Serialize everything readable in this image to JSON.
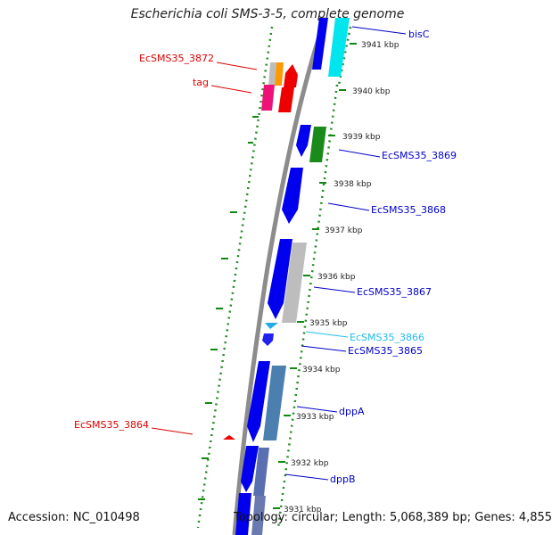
{
  "header": {
    "title": "Escherichia coli SMS-3-5, complete genome"
  },
  "footer": {
    "accession": "Accession: NC_010498",
    "summary": "Topology: circular; Length: 5,068,389 bp; Genes: 4,855"
  },
  "tick_labels": [
    "3941 kbp",
    "3940 kbp",
    "3939 kbp",
    "3938 kbp",
    "3937 kbp",
    "3936 kbp",
    "3935 kbp",
    "3934 kbp",
    "3933 kbp",
    "3932 kbp",
    "3931 kbp"
  ],
  "gene_labels": [
    {
      "text": "bisC",
      "color": "#0000cc"
    },
    {
      "text": "EcSMS35_3872",
      "color": "#dd0000"
    },
    {
      "text": "tag",
      "color": "#dd0000"
    },
    {
      "text": "EcSMS35_3869",
      "color": "#0000cc"
    },
    {
      "text": "EcSMS35_3868",
      "color": "#0000cc"
    },
    {
      "text": "EcSMS35_3867",
      "color": "#0000cc"
    },
    {
      "text": "EcSMS35_3866",
      "color": "#22bbee"
    },
    {
      "text": "EcSMS35_3865",
      "color": "#0000cc"
    },
    {
      "text": "dppA",
      "color": "#0000cc"
    },
    {
      "text": "EcSMS35_3864",
      "color": "#dd0000"
    },
    {
      "text": "dppB",
      "color": "#0000cc"
    }
  ],
  "colors": {
    "backbone": "#8a8a8a",
    "cds_forward": "#0000ee",
    "cds_grey": "#bdbdbd",
    "cds_cyan": "#00e5ee",
    "cds_green": "#1a8a1a",
    "cds_steel": "#4a7fb0",
    "cds_red": "#ee0000",
    "cds_pink": "#ee1177",
    "cds_orange": "#ff9900",
    "gc_dots": "#228822"
  }
}
